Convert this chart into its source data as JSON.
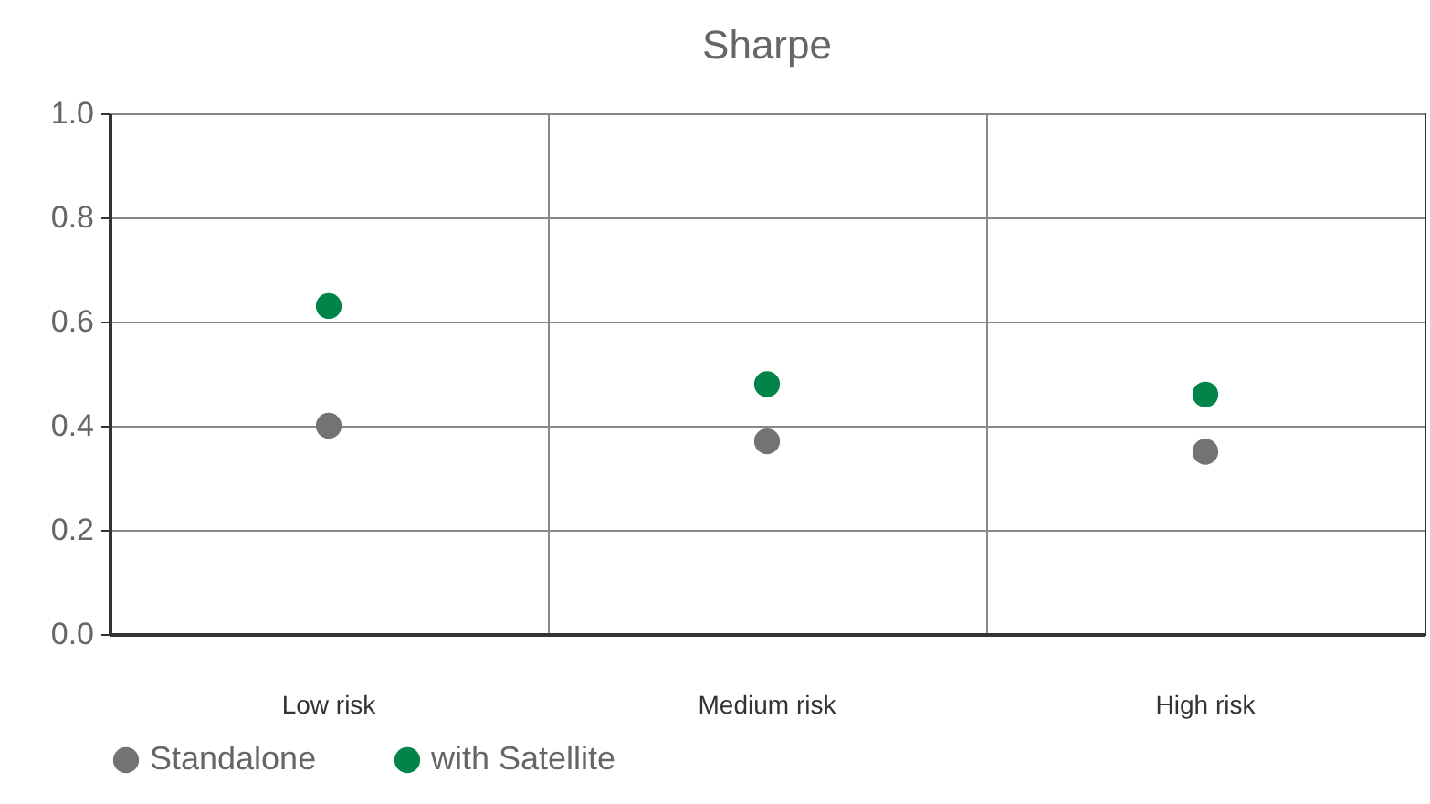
{
  "chart_data": {
    "type": "scatter",
    "title": "Sharpe",
    "categories": [
      "Low risk",
      "Medium risk",
      "High risk"
    ],
    "series": [
      {
        "name": "Standalone",
        "color": "#737373",
        "values": [
          0.4,
          0.37,
          0.35
        ]
      },
      {
        "name": "with Satellite",
        "color": "#00844a",
        "values": [
          0.63,
          0.48,
          0.46
        ]
      }
    ],
    "ylim": [
      0,
      1
    ],
    "yticks": [
      {
        "value": 0,
        "label": "0.0"
      },
      {
        "value": 0.2,
        "label": "0.2"
      },
      {
        "value": 0.4,
        "label": "0.4"
      },
      {
        "value": 0.6,
        "label": "0.6"
      },
      {
        "value": 0.8,
        "label": "0.8"
      },
      {
        "value": 1,
        "label": "1.0"
      }
    ],
    "grid": true,
    "legend": "bottom",
    "marker": "circle"
  }
}
